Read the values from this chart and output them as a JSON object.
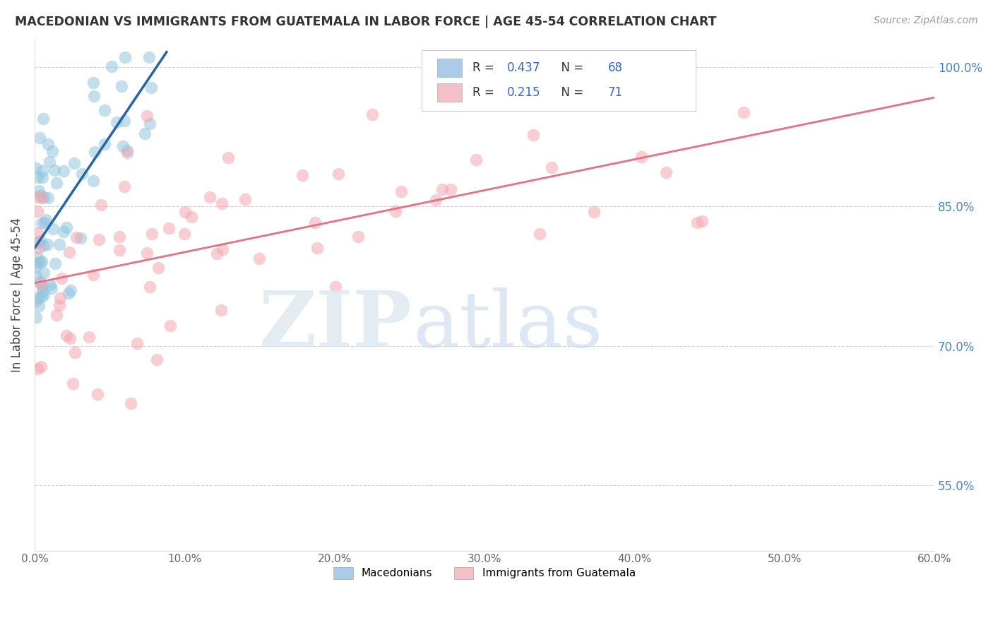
{
  "title": "MACEDONIAN VS IMMIGRANTS FROM GUATEMALA IN LABOR FORCE | AGE 45-54 CORRELATION CHART",
  "source": "Source: ZipAtlas.com",
  "ylabel": "In Labor Force | Age 45-54",
  "xlim": [
    0.0,
    0.6
  ],
  "ylim": [
    0.48,
    1.03
  ],
  "xtick_vals": [
    0.0,
    0.1,
    0.2,
    0.3,
    0.4,
    0.5,
    0.6
  ],
  "xtick_labels": [
    "0.0%",
    "10.0%",
    "20.0%",
    "30.0%",
    "40.0%",
    "50.0%",
    "60.0%"
  ],
  "ytick_vals": [
    0.55,
    0.7,
    0.85,
    1.0
  ],
  "ytick_labels": [
    "55.0%",
    "70.0%",
    "85.0%",
    "100.0%"
  ],
  "blue_R": 0.437,
  "blue_N": 68,
  "pink_R": 0.215,
  "pink_N": 71,
  "blue_dot_color": "#92c5de",
  "pink_dot_color": "#f4a6b0",
  "blue_line_color": "#2166ac",
  "pink_line_color": "#e87080",
  "legend_label_blue": "Macedonians",
  "legend_label_pink": "Immigrants from Guatemala",
  "blue_legend_color": "#aacce8",
  "pink_legend_color": "#f5bfc8"
}
